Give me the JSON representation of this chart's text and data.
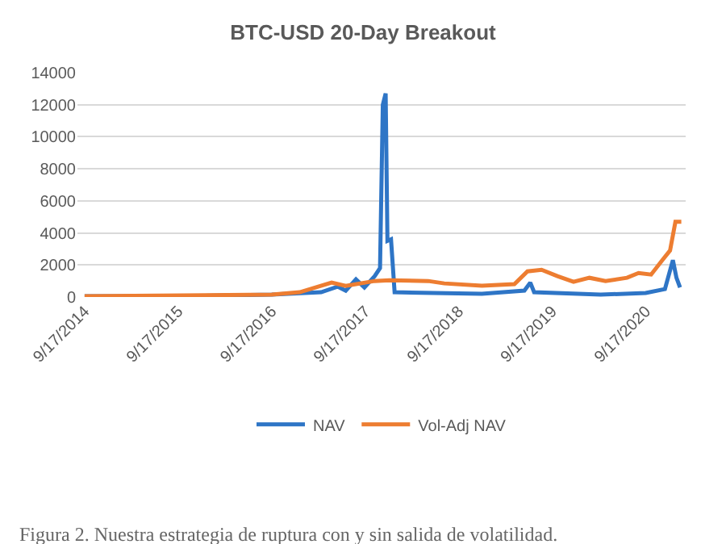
{
  "chart_data": {
    "type": "line",
    "title": "BTC-USD 20-Day Breakout",
    "annotations": [
      "Figura 2. Nuestra estrategia de ruptura con y sin salida de volatilidad."
    ],
    "xlim": [
      "2014-08-20",
      "2021-02-20"
    ],
    "xticks": [
      {
        "value": "2014-09-17",
        "label": "9/17/2014"
      },
      {
        "value": "2015-09-17",
        "label": "9/17/2015"
      },
      {
        "value": "2016-09-17",
        "label": "9/17/2016"
      },
      {
        "value": "2017-09-17",
        "label": "9/17/2017"
      },
      {
        "value": "2018-09-17",
        "label": "9/17/2018"
      },
      {
        "value": "2019-09-17",
        "label": "9/17/2019"
      },
      {
        "value": "2020-09-17",
        "label": "9/17/2020"
      }
    ],
    "ylim": [
      0,
      14000
    ],
    "yticks": [
      0,
      2000,
      4000,
      6000,
      8000,
      10000,
      12000,
      14000
    ],
    "grid": "y",
    "legend": "bottom",
    "marker": "none",
    "line_style": "solid",
    "series": [
      {
        "name": "NAV",
        "color": "#2e75c6",
        "x": [
          "2014-09-17",
          "2015-09-17",
          "2016-09-17",
          "2017-03-29",
          "2017-06-01",
          "2017-07-03",
          "2017-08-12",
          "2017-09-14",
          "2017-10-24",
          "2017-11-14",
          "2017-11-25",
          "2017-12-06",
          "2017-12-13",
          "2017-12-27",
          "2018-01-10",
          "2018-12-17",
          "2019-06-01",
          "2019-06-24",
          "2019-07-09",
          "2020-03-25",
          "2020-09-17",
          "2020-12-01",
          "2021-01-01",
          "2021-01-15",
          "2021-01-29"
        ],
        "values": [
          50,
          50,
          150,
          300,
          650,
          400,
          1100,
          600,
          1300,
          1800,
          12000,
          12700,
          3500,
          3600,
          300,
          200,
          400,
          900,
          300,
          150,
          250,
          500,
          2300,
          1200,
          600
        ]
      },
      {
        "name": "Vol-Adj NAV",
        "color": "#ed7d31",
        "x": [
          "2014-09-17",
          "2016-09-17",
          "2017-01-04",
          "2017-05-09",
          "2017-07-03",
          "2017-10-24",
          "2017-12-20",
          "2018-05-21",
          "2018-07-23",
          "2018-12-17",
          "2019-04-23",
          "2019-06-13",
          "2019-08-07",
          "2019-10-08",
          "2019-12-10",
          "2020-02-10",
          "2020-04-13",
          "2020-07-06",
          "2020-08-20",
          "2020-10-08",
          "2020-11-21",
          "2020-12-21",
          "2021-01-11",
          "2021-02-03"
        ],
        "values": [
          50,
          150,
          300,
          900,
          700,
          1000,
          1050,
          1000,
          850,
          700,
          800,
          1600,
          1700,
          1300,
          950,
          1200,
          1000,
          1200,
          1500,
          1400,
          2300,
          2900,
          4700,
          4700
        ]
      }
    ]
  }
}
